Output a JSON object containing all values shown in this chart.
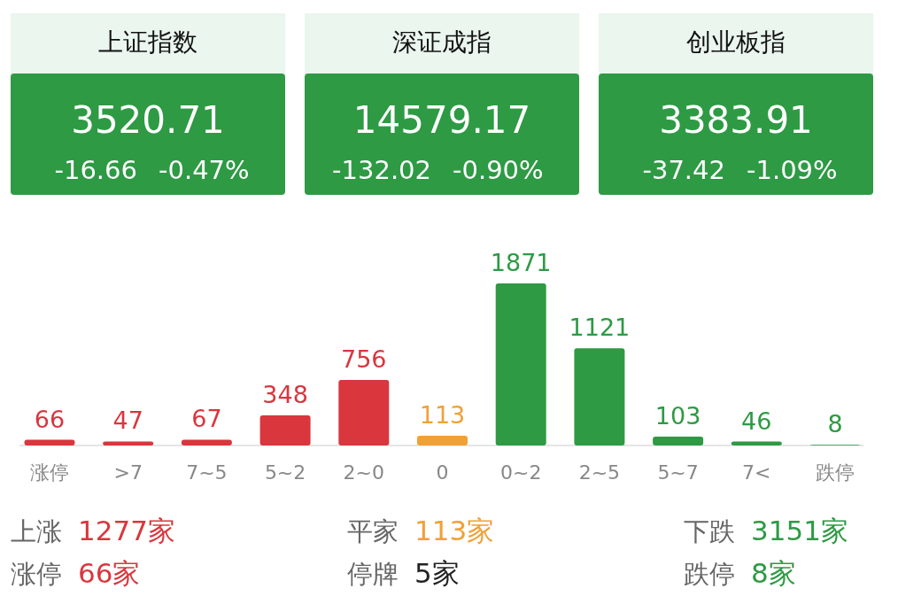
{
  "chart_data": [
    {
      "type": "other",
      "title": "上证指数",
      "annotations": [
        "3520.71",
        "-16.66",
        "-0.47%"
      ]
    },
    {
      "type": "other",
      "title": "深证成指",
      "annotations": [
        "14579.17",
        "-132.02",
        "-0.90%"
      ]
    },
    {
      "type": "other",
      "title": "创业板指",
      "annotations": [
        "3383.91",
        "-37.42",
        "-1.09%"
      ]
    },
    {
      "type": "bar",
      "categories": [
        "涨停",
        ">7",
        "7~5",
        "5~2",
        "2~0",
        "0",
        "0~2",
        "2~5",
        "5~7",
        "7<",
        "跌停"
      ],
      "values": [
        66,
        47,
        67,
        348,
        756,
        113,
        1871,
        1121,
        103,
        46,
        8
      ],
      "colors": [
        "#d9363e",
        "#d9363e",
        "#d9363e",
        "#d9363e",
        "#d9363e",
        "#f0a136",
        "#2e9a44",
        "#2e9a44",
        "#2e9a44",
        "#2e9a44",
        "#2e9a44"
      ],
      "data_labels": true
    },
    {
      "type": "other",
      "categories": [
        "上涨",
        "涨停",
        "平家",
        "停牌",
        "下跌",
        "跌停"
      ],
      "values": [
        1277,
        66,
        113,
        5,
        3151,
        8
      ],
      "value_labels": [
        "1277家",
        "66家",
        "113家",
        "5家",
        "3151家",
        "8家"
      ],
      "colors": [
        "#d9363e",
        "#d9363e",
        "#f0a136",
        "#222222",
        "#2e9a44",
        "#2e9a44"
      ]
    }
  ]
}
